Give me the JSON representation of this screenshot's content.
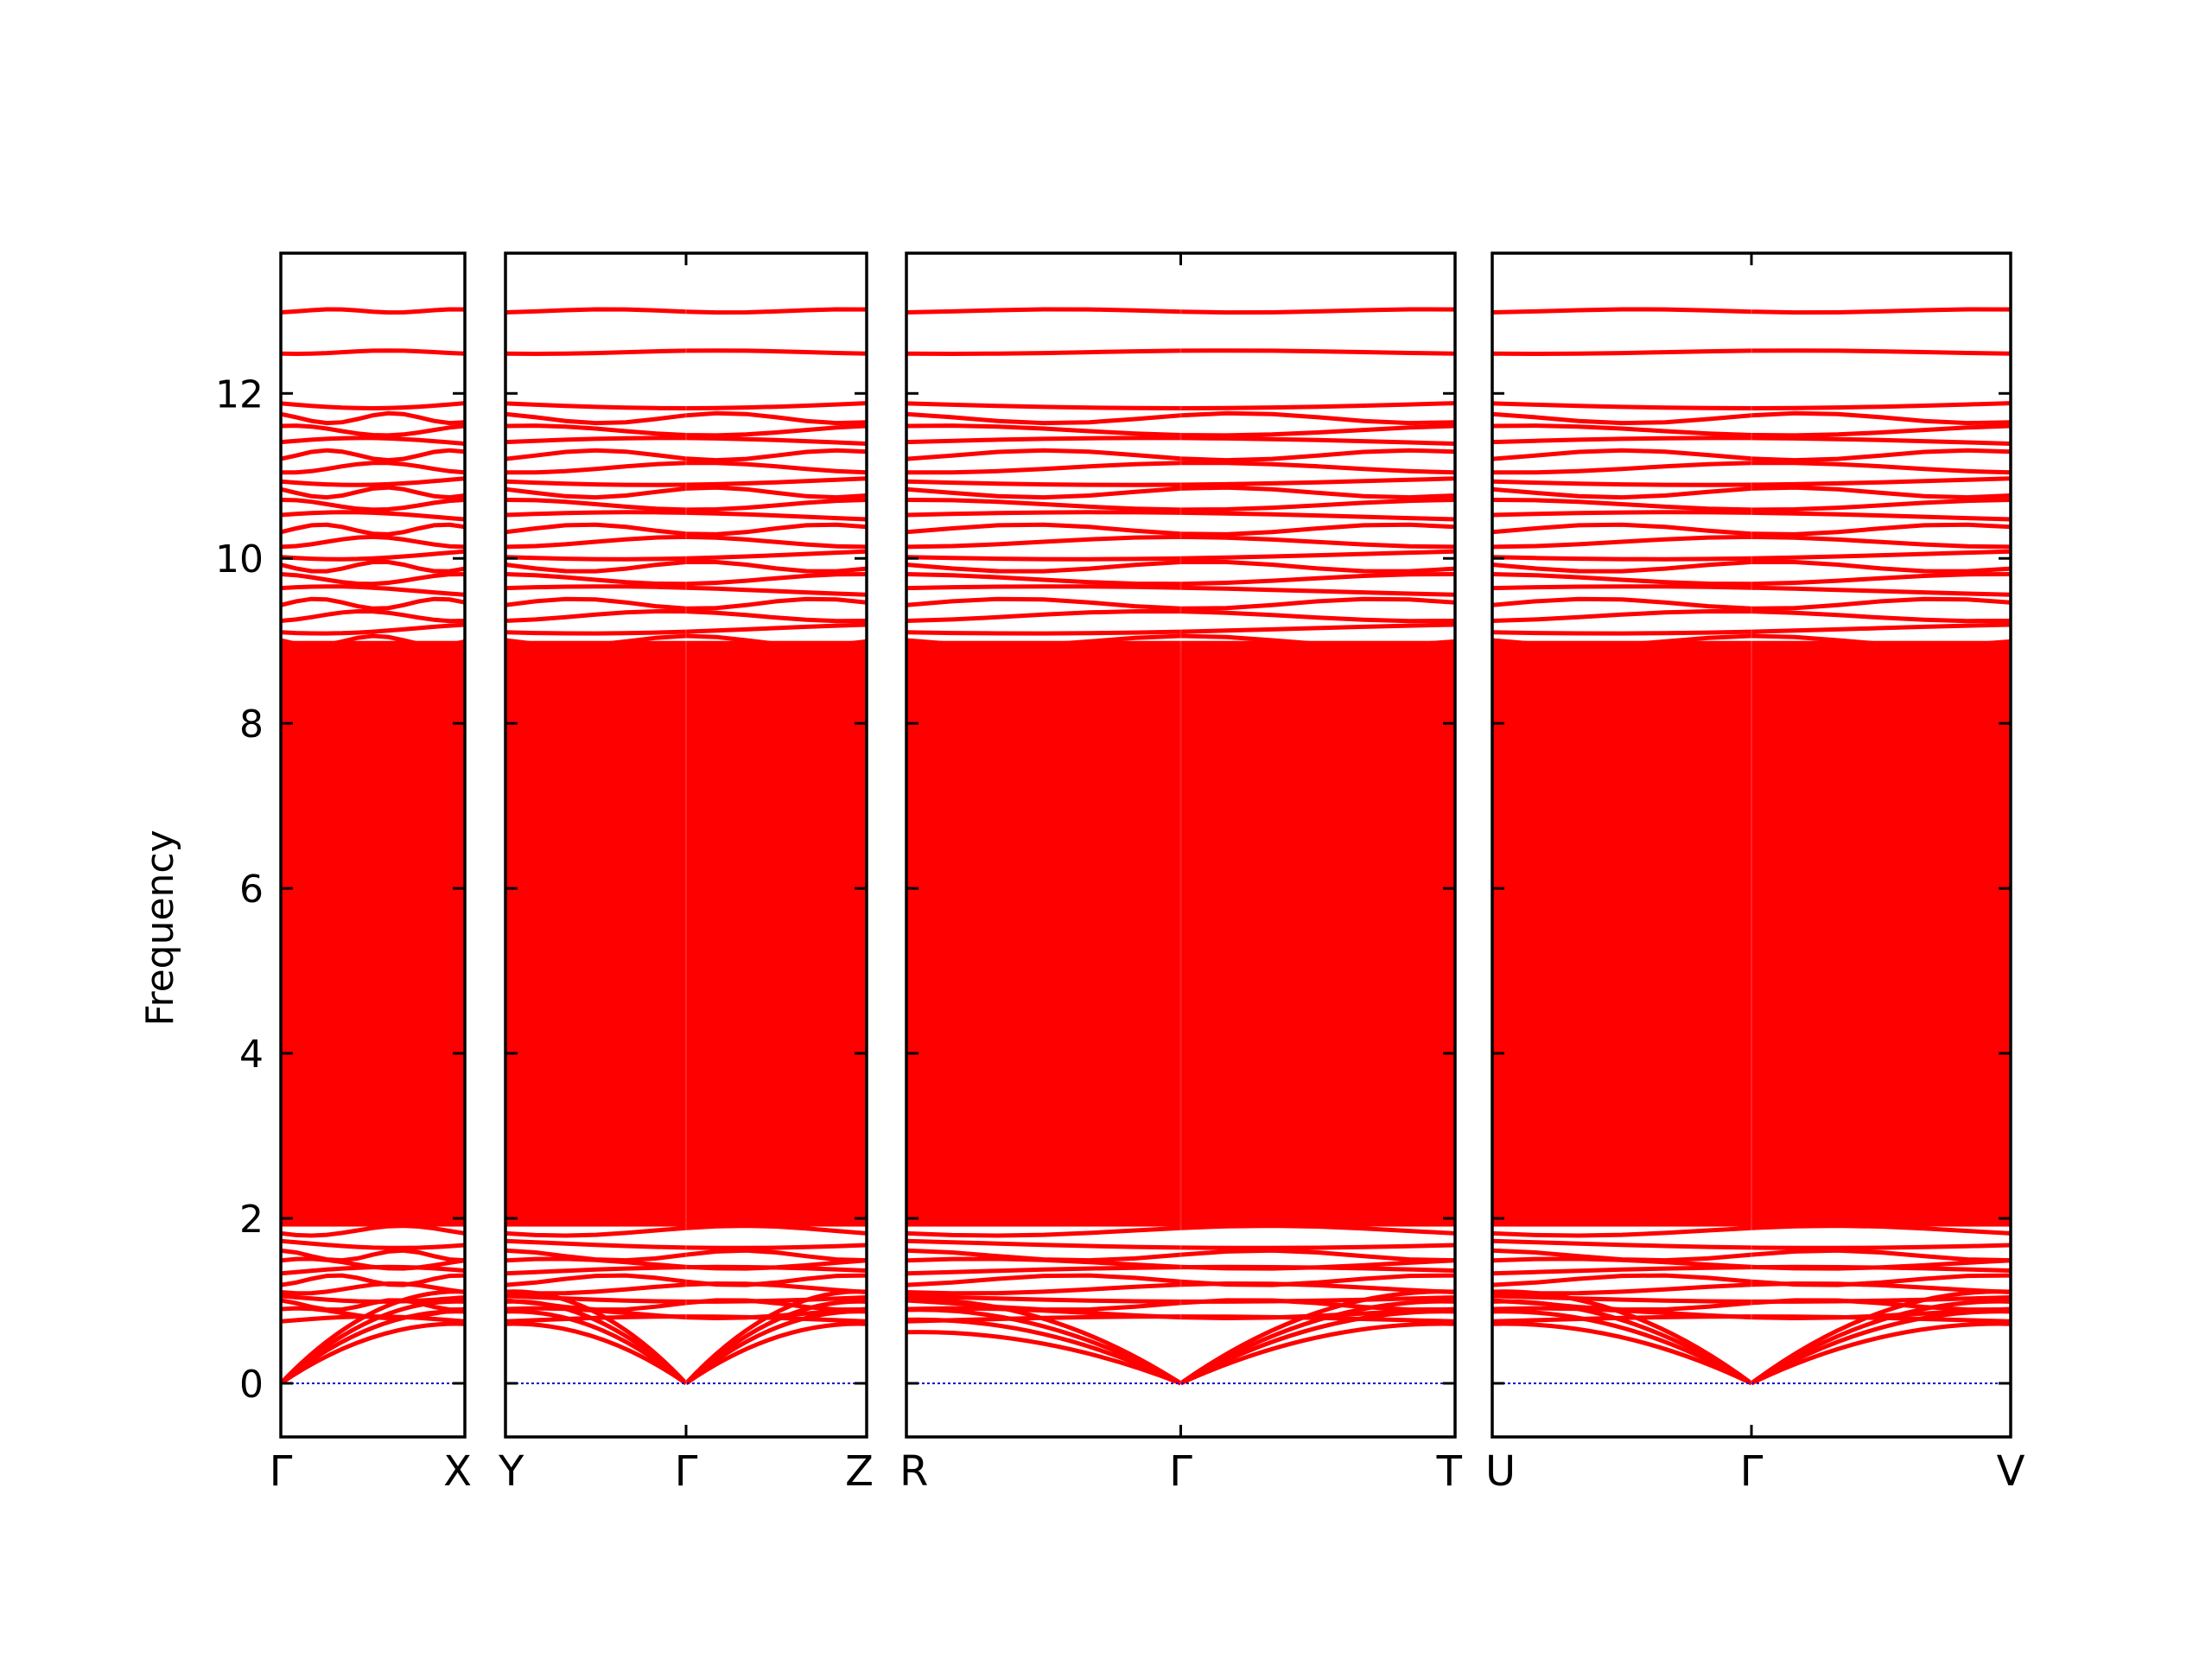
{
  "chart_data": {
    "type": "line",
    "title": "",
    "ylabel": "Frequency",
    "ylim": [
      -0.65,
      13.7
    ],
    "yticks": [
      0,
      2,
      4,
      6,
      8,
      10,
      12
    ],
    "ytick_labels": [
      "0",
      "2",
      "4",
      "6",
      "8",
      "10",
      "12"
    ],
    "grid": false,
    "zero_line_color": "#0000cc",
    "band_color": "#ff0000",
    "panels": [
      {
        "path": [
          "Γ",
          "X"
        ],
        "x": [
          0,
          1
        ]
      },
      {
        "path": [
          "Y",
          "Γ",
          "Z"
        ],
        "x": [
          0,
          1,
          2
        ]
      },
      {
        "path": [
          "R",
          "Γ",
          "T"
        ],
        "x": [
          0,
          1,
          2
        ]
      },
      {
        "path": [
          "U",
          "Γ",
          "V"
        ],
        "x": [
          0,
          1,
          2
        ]
      }
    ],
    "acoustic_bands_at_gamma": 0,
    "optical_band_sample_levels": [
      0.75,
      0.85,
      0.95,
      1.05,
      1.15,
      1.25,
      1.35,
      1.45,
      1.55,
      1.7,
      1.85,
      2.0,
      2.15,
      2.3,
      2.5,
      2.7,
      2.9,
      3.1,
      3.3,
      3.5,
      3.7,
      3.9,
      4.1,
      4.3,
      4.5,
      4.7,
      4.9,
      5.1,
      5.3,
      5.5,
      5.7,
      5.9,
      6.1,
      6.3,
      6.5,
      6.7,
      6.9,
      7.1,
      7.3,
      7.5,
      7.7,
      7.9,
      8.1,
      8.3,
      8.5,
      8.7,
      8.9,
      9.0,
      9.15,
      9.3,
      9.45,
      9.6,
      9.75,
      9.9,
      10.05,
      10.2,
      10.35,
      10.5,
      10.65,
      10.8,
      10.95,
      11.1,
      11.25,
      11.4,
      11.55,
      11.7,
      11.88,
      12.5,
      13.0
    ]
  }
}
